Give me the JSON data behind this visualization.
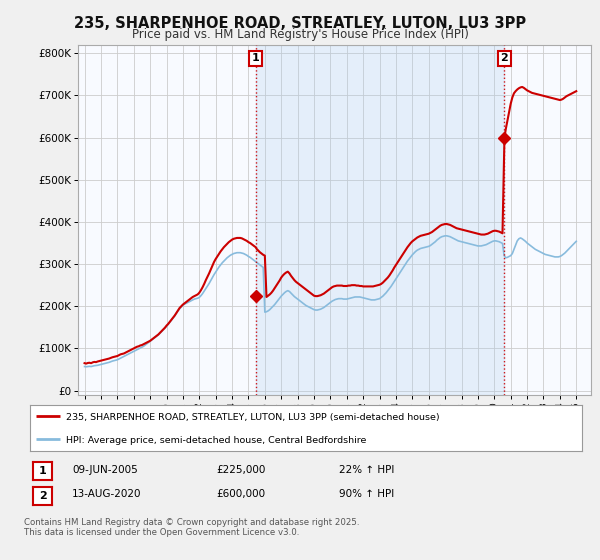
{
  "title": "235, SHARPENHOE ROAD, STREATLEY, LUTON, LU3 3PP",
  "subtitle": "Price paid vs. HM Land Registry's House Price Index (HPI)",
  "background_color": "#f0f0f0",
  "plot_bg_color": "#f8faff",
  "shaded_color": "#ddeeff",
  "grid_color": "#cccccc",
  "red_color": "#cc0000",
  "blue_color": "#88bbdd",
  "annotation1": {
    "label": "1",
    "date": "09-JUN-2005",
    "price": "£225,000",
    "hpi": "22% ↑ HPI",
    "x_year": 2005.44
  },
  "annotation2": {
    "label": "2",
    "date": "13-AUG-2020",
    "price": "£600,000",
    "hpi": "90% ↑ HPI",
    "x_year": 2020.62
  },
  "legend_line1": "235, SHARPENHOE ROAD, STREATLEY, LUTON, LU3 3PP (semi-detached house)",
  "legend_line2": "HPI: Average price, semi-detached house, Central Bedfordshire",
  "footer": "Contains HM Land Registry data © Crown copyright and database right 2025.\nThis data is licensed under the Open Government Licence v3.0.",
  "yticks": [
    0,
    100000,
    200000,
    300000,
    400000,
    500000,
    600000,
    700000,
    800000
  ],
  "ytick_labels": [
    "£0",
    "£100K",
    "£200K",
    "£300K",
    "£400K",
    "£500K",
    "£600K",
    "£700K",
    "£800K"
  ],
  "xmin": 1994.6,
  "xmax": 2025.9,
  "ymin": -10000,
  "ymax": 820000,
  "red_data_x": [
    1995.0,
    1995.1,
    1995.2,
    1995.3,
    1995.4,
    1995.5,
    1995.6,
    1995.7,
    1995.8,
    1995.9,
    1996.0,
    1996.1,
    1996.2,
    1996.3,
    1996.4,
    1996.5,
    1996.6,
    1996.7,
    1996.8,
    1996.9,
    1997.0,
    1997.1,
    1997.2,
    1997.3,
    1997.4,
    1997.5,
    1997.6,
    1997.7,
    1997.8,
    1997.9,
    1998.0,
    1998.1,
    1998.2,
    1998.3,
    1998.4,
    1998.5,
    1998.6,
    1998.7,
    1998.8,
    1998.9,
    1999.0,
    1999.1,
    1999.2,
    1999.3,
    1999.4,
    1999.5,
    1999.6,
    1999.7,
    1999.8,
    1999.9,
    2000.0,
    2000.1,
    2000.2,
    2000.3,
    2000.4,
    2000.5,
    2000.6,
    2000.7,
    2000.8,
    2000.9,
    2001.0,
    2001.1,
    2001.2,
    2001.3,
    2001.4,
    2001.5,
    2001.6,
    2001.7,
    2001.8,
    2001.9,
    2002.0,
    2002.1,
    2002.2,
    2002.3,
    2002.4,
    2002.5,
    2002.6,
    2002.7,
    2002.8,
    2002.9,
    2003.0,
    2003.1,
    2003.2,
    2003.3,
    2003.4,
    2003.5,
    2003.6,
    2003.7,
    2003.8,
    2003.9,
    2004.0,
    2004.1,
    2004.2,
    2004.3,
    2004.4,
    2004.5,
    2004.6,
    2004.7,
    2004.8,
    2004.9,
    2005.0,
    2005.1,
    2005.2,
    2005.3,
    2005.44,
    2005.5,
    2005.6,
    2005.7,
    2005.8,
    2005.9,
    2006.0,
    2006.1,
    2006.2,
    2006.3,
    2006.4,
    2006.5,
    2006.6,
    2006.7,
    2006.8,
    2006.9,
    2007.0,
    2007.1,
    2007.2,
    2007.3,
    2007.4,
    2007.5,
    2007.6,
    2007.7,
    2007.8,
    2007.9,
    2008.0,
    2008.1,
    2008.2,
    2008.3,
    2008.4,
    2008.5,
    2008.6,
    2008.7,
    2008.8,
    2008.9,
    2009.0,
    2009.1,
    2009.2,
    2009.3,
    2009.4,
    2009.5,
    2009.6,
    2009.7,
    2009.8,
    2009.9,
    2010.0,
    2010.1,
    2010.2,
    2010.3,
    2010.4,
    2010.5,
    2010.6,
    2010.7,
    2010.8,
    2010.9,
    2011.0,
    2011.1,
    2011.2,
    2011.3,
    2011.4,
    2011.5,
    2011.6,
    2011.7,
    2011.8,
    2011.9,
    2012.0,
    2012.1,
    2012.2,
    2012.3,
    2012.4,
    2012.5,
    2012.6,
    2012.7,
    2012.8,
    2012.9,
    2013.0,
    2013.1,
    2013.2,
    2013.3,
    2013.4,
    2013.5,
    2013.6,
    2013.7,
    2013.8,
    2013.9,
    2014.0,
    2014.1,
    2014.2,
    2014.3,
    2014.4,
    2014.5,
    2014.6,
    2014.7,
    2014.8,
    2014.9,
    2015.0,
    2015.1,
    2015.2,
    2015.3,
    2015.4,
    2015.5,
    2015.6,
    2015.7,
    2015.8,
    2015.9,
    2016.0,
    2016.1,
    2016.2,
    2016.3,
    2016.4,
    2016.5,
    2016.6,
    2016.7,
    2016.8,
    2016.9,
    2017.0,
    2017.1,
    2017.2,
    2017.3,
    2017.4,
    2017.5,
    2017.6,
    2017.7,
    2017.8,
    2017.9,
    2018.0,
    2018.1,
    2018.2,
    2018.3,
    2018.4,
    2018.5,
    2018.6,
    2018.7,
    2018.8,
    2018.9,
    2019.0,
    2019.1,
    2019.2,
    2019.3,
    2019.4,
    2019.5,
    2019.6,
    2019.7,
    2019.8,
    2019.9,
    2020.0,
    2020.1,
    2020.2,
    2020.3,
    2020.4,
    2020.5,
    2020.62,
    2020.7,
    2020.8,
    2020.9,
    2021.0,
    2021.1,
    2021.2,
    2021.3,
    2021.4,
    2021.5,
    2021.6,
    2021.7,
    2021.8,
    2021.9,
    2022.0,
    2022.1,
    2022.2,
    2022.3,
    2022.4,
    2022.5,
    2022.6,
    2022.7,
    2022.8,
    2022.9,
    2023.0,
    2023.1,
    2023.2,
    2023.3,
    2023.4,
    2023.5,
    2023.6,
    2023.7,
    2023.8,
    2023.9,
    2024.0,
    2024.1,
    2024.2,
    2024.3,
    2024.4,
    2024.5,
    2024.6,
    2024.7,
    2024.8,
    2024.9,
    2025.0
  ],
  "red_data_y": [
    65000,
    64000,
    65500,
    66000,
    65000,
    67000,
    68000,
    67500,
    69000,
    70000,
    71000,
    72000,
    73000,
    74000,
    75000,
    76000,
    77500,
    79000,
    80000,
    81000,
    82000,
    84000,
    86000,
    87000,
    88000,
    90000,
    92000,
    94000,
    96000,
    98000,
    100000,
    102000,
    104000,
    105000,
    107000,
    108000,
    110000,
    112000,
    114000,
    116000,
    118000,
    121000,
    124000,
    127000,
    130000,
    133000,
    137000,
    141000,
    145000,
    149000,
    154000,
    158000,
    163000,
    168000,
    173000,
    178000,
    184000,
    190000,
    196000,
    200000,
    204000,
    207000,
    210000,
    213000,
    216000,
    219000,
    222000,
    224000,
    226000,
    228000,
    232000,
    238000,
    245000,
    253000,
    262000,
    270000,
    278000,
    287000,
    296000,
    305000,
    312000,
    318000,
    324000,
    330000,
    335000,
    340000,
    344000,
    348000,
    352000,
    355000,
    358000,
    360000,
    361000,
    362000,
    362000,
    362000,
    361000,
    359000,
    357000,
    355000,
    352000,
    350000,
    347000,
    344000,
    340000,
    336000,
    332000,
    328000,
    325000,
    322000,
    320000,
    222000,
    225000,
    228000,
    232000,
    237000,
    243000,
    249000,
    255000,
    261000,
    268000,
    273000,
    277000,
    280000,
    282000,
    278000,
    272000,
    267000,
    262000,
    258000,
    255000,
    252000,
    249000,
    246000,
    243000,
    240000,
    237000,
    234000,
    231000,
    228000,
    225000,
    224000,
    224000,
    225000,
    226000,
    228000,
    230000,
    233000,
    236000,
    239000,
    242000,
    245000,
    247000,
    248000,
    249000,
    249000,
    249000,
    249000,
    248000,
    248000,
    248000,
    249000,
    249000,
    250000,
    250000,
    250000,
    249000,
    249000,
    248000,
    248000,
    247000,
    247000,
    247000,
    247000,
    247000,
    247000,
    247000,
    248000,
    249000,
    250000,
    251000,
    253000,
    256000,
    260000,
    264000,
    268000,
    273000,
    279000,
    285000,
    292000,
    298000,
    304000,
    310000,
    316000,
    322000,
    328000,
    334000,
    340000,
    345000,
    350000,
    354000,
    357000,
    360000,
    363000,
    365000,
    367000,
    368000,
    369000,
    370000,
    371000,
    372000,
    374000,
    376000,
    379000,
    382000,
    385000,
    388000,
    391000,
    393000,
    394000,
    395000,
    395000,
    394000,
    393000,
    391000,
    389000,
    387000,
    385000,
    384000,
    383000,
    382000,
    381000,
    380000,
    379000,
    378000,
    377000,
    376000,
    375000,
    374000,
    373000,
    372000,
    371000,
    370000,
    370000,
    370000,
    371000,
    372000,
    374000,
    376000,
    378000,
    379000,
    379000,
    378000,
    377000,
    375000,
    373000,
    600000,
    620000,
    640000,
    660000,
    680000,
    695000,
    705000,
    710000,
    714000,
    717000,
    719000,
    720000,
    718000,
    715000,
    712000,
    710000,
    708000,
    706000,
    705000,
    704000,
    703000,
    702000,
    701000,
    700000,
    699000,
    698000,
    697000,
    696000,
    695000,
    694000,
    693000,
    692000,
    691000,
    690000,
    689000,
    690000,
    692000,
    695000,
    698000,
    700000,
    702000,
    704000,
    706000,
    708000,
    710000
  ],
  "blue_data_x": [
    1995.0,
    1995.1,
    1995.2,
    1995.3,
    1995.4,
    1995.5,
    1995.6,
    1995.7,
    1995.8,
    1995.9,
    1996.0,
    1996.1,
    1996.2,
    1996.3,
    1996.4,
    1996.5,
    1996.6,
    1996.7,
    1996.8,
    1996.9,
    1997.0,
    1997.1,
    1997.2,
    1997.3,
    1997.4,
    1997.5,
    1997.6,
    1997.7,
    1997.8,
    1997.9,
    1998.0,
    1998.1,
    1998.2,
    1998.3,
    1998.4,
    1998.5,
    1998.6,
    1998.7,
    1998.8,
    1998.9,
    1999.0,
    1999.1,
    1999.2,
    1999.3,
    1999.4,
    1999.5,
    1999.6,
    1999.7,
    1999.8,
    1999.9,
    2000.0,
    2000.1,
    2000.2,
    2000.3,
    2000.4,
    2000.5,
    2000.6,
    2000.7,
    2000.8,
    2000.9,
    2001.0,
    2001.1,
    2001.2,
    2001.3,
    2001.4,
    2001.5,
    2001.6,
    2001.7,
    2001.8,
    2001.9,
    2002.0,
    2002.1,
    2002.2,
    2002.3,
    2002.4,
    2002.5,
    2002.6,
    2002.7,
    2002.8,
    2002.9,
    2003.0,
    2003.1,
    2003.2,
    2003.3,
    2003.4,
    2003.5,
    2003.6,
    2003.7,
    2003.8,
    2003.9,
    2004.0,
    2004.1,
    2004.2,
    2004.3,
    2004.4,
    2004.5,
    2004.6,
    2004.7,
    2004.8,
    2004.9,
    2005.0,
    2005.1,
    2005.2,
    2005.3,
    2005.4,
    2005.5,
    2005.6,
    2005.7,
    2005.8,
    2005.9,
    2006.0,
    2006.1,
    2006.2,
    2006.3,
    2006.4,
    2006.5,
    2006.6,
    2006.7,
    2006.8,
    2006.9,
    2007.0,
    2007.1,
    2007.2,
    2007.3,
    2007.4,
    2007.5,
    2007.6,
    2007.7,
    2007.8,
    2007.9,
    2008.0,
    2008.1,
    2008.2,
    2008.3,
    2008.4,
    2008.5,
    2008.6,
    2008.7,
    2008.8,
    2008.9,
    2009.0,
    2009.1,
    2009.2,
    2009.3,
    2009.4,
    2009.5,
    2009.6,
    2009.7,
    2009.8,
    2009.9,
    2010.0,
    2010.1,
    2010.2,
    2010.3,
    2010.4,
    2010.5,
    2010.6,
    2010.7,
    2010.8,
    2010.9,
    2011.0,
    2011.1,
    2011.2,
    2011.3,
    2011.4,
    2011.5,
    2011.6,
    2011.7,
    2011.8,
    2011.9,
    2012.0,
    2012.1,
    2012.2,
    2012.3,
    2012.4,
    2012.5,
    2012.6,
    2012.7,
    2012.8,
    2012.9,
    2013.0,
    2013.1,
    2013.2,
    2013.3,
    2013.4,
    2013.5,
    2013.6,
    2013.7,
    2013.8,
    2013.9,
    2014.0,
    2014.1,
    2014.2,
    2014.3,
    2014.4,
    2014.5,
    2014.6,
    2014.7,
    2014.8,
    2014.9,
    2015.0,
    2015.1,
    2015.2,
    2015.3,
    2015.4,
    2015.5,
    2015.6,
    2015.7,
    2015.8,
    2015.9,
    2016.0,
    2016.1,
    2016.2,
    2016.3,
    2016.4,
    2016.5,
    2016.6,
    2016.7,
    2016.8,
    2016.9,
    2017.0,
    2017.1,
    2017.2,
    2017.3,
    2017.4,
    2017.5,
    2017.6,
    2017.7,
    2017.8,
    2017.9,
    2018.0,
    2018.1,
    2018.2,
    2018.3,
    2018.4,
    2018.5,
    2018.6,
    2018.7,
    2018.8,
    2018.9,
    2019.0,
    2019.1,
    2019.2,
    2019.3,
    2019.4,
    2019.5,
    2019.6,
    2019.7,
    2019.8,
    2019.9,
    2020.0,
    2020.1,
    2020.2,
    2020.3,
    2020.4,
    2020.5,
    2020.6,
    2020.7,
    2020.8,
    2020.9,
    2021.0,
    2021.1,
    2021.2,
    2021.3,
    2021.4,
    2021.5,
    2021.6,
    2021.7,
    2021.8,
    2021.9,
    2022.0,
    2022.1,
    2022.2,
    2022.3,
    2022.4,
    2022.5,
    2022.6,
    2022.7,
    2022.8,
    2022.9,
    2023.0,
    2023.1,
    2023.2,
    2023.3,
    2023.4,
    2023.5,
    2023.6,
    2023.7,
    2023.8,
    2023.9,
    2024.0,
    2024.1,
    2024.2,
    2024.3,
    2024.4,
    2024.5,
    2024.6,
    2024.7,
    2024.8,
    2024.9,
    2025.0
  ],
  "blue_data_y": [
    57000,
    56500,
    57000,
    57500,
    57000,
    58000,
    59000,
    59500,
    60000,
    61000,
    62000,
    63000,
    64000,
    65000,
    66000,
    67000,
    68500,
    70000,
    71000,
    72000,
    73000,
    75000,
    77000,
    79000,
    81000,
    83000,
    85000,
    87000,
    89000,
    91000,
    93000,
    95000,
    97000,
    99000,
    101000,
    103000,
    105000,
    108000,
    111000,
    114000,
    117000,
    120000,
    123000,
    126000,
    129000,
    132000,
    136000,
    140000,
    144000,
    148000,
    152000,
    157000,
    162000,
    167000,
    172000,
    177000,
    183000,
    189000,
    194000,
    198000,
    202000,
    205000,
    207000,
    209000,
    211000,
    213000,
    215000,
    217000,
    218000,
    219000,
    221000,
    225000,
    230000,
    236000,
    242000,
    248000,
    254000,
    261000,
    268000,
    275000,
    281000,
    287000,
    293000,
    298000,
    303000,
    307000,
    311000,
    315000,
    318000,
    321000,
    323000,
    325000,
    326000,
    327000,
    327000,
    327000,
    326000,
    325000,
    323000,
    321000,
    318000,
    316000,
    313000,
    310000,
    307000,
    304000,
    301000,
    298000,
    295000,
    292000,
    186000,
    187000,
    189000,
    192000,
    196000,
    200000,
    204000,
    209000,
    214000,
    219000,
    224000,
    228000,
    232000,
    235000,
    237000,
    235000,
    231000,
    227000,
    223000,
    220000,
    217000,
    214000,
    211000,
    208000,
    205000,
    202000,
    200000,
    198000,
    196000,
    194000,
    192000,
    191000,
    191000,
    192000,
    193000,
    195000,
    197000,
    200000,
    203000,
    206000,
    209000,
    212000,
    214000,
    216000,
    217000,
    218000,
    218000,
    218000,
    217000,
    217000,
    217000,
    218000,
    219000,
    220000,
    221000,
    222000,
    222000,
    222000,
    222000,
    221000,
    220000,
    219000,
    218000,
    217000,
    216000,
    215000,
    215000,
    215000,
    216000,
    217000,
    218000,
    221000,
    224000,
    228000,
    232000,
    237000,
    242000,
    247000,
    253000,
    259000,
    265000,
    271000,
    277000,
    283000,
    289000,
    295000,
    301000,
    307000,
    312000,
    317000,
    322000,
    326000,
    330000,
    333000,
    335000,
    337000,
    338000,
    339000,
    340000,
    341000,
    342000,
    344000,
    347000,
    350000,
    353000,
    357000,
    360000,
    363000,
    365000,
    366000,
    367000,
    367000,
    366000,
    365000,
    363000,
    361000,
    359000,
    357000,
    355000,
    354000,
    353000,
    352000,
    351000,
    350000,
    349000,
    348000,
    347000,
    346000,
    345000,
    344000,
    343000,
    343000,
    343000,
    344000,
    345000,
    346000,
    348000,
    350000,
    352000,
    354000,
    355000,
    355000,
    354000,
    353000,
    351000,
    349000,
    320000,
    315000,
    316000,
    318000,
    320000,
    325000,
    335000,
    345000,
    355000,
    360000,
    362000,
    360000,
    357000,
    354000,
    350000,
    347000,
    344000,
    341000,
    338000,
    335000,
    333000,
    331000,
    329000,
    327000,
    325000,
    323000,
    322000,
    321000,
    320000,
    319000,
    318000,
    317000,
    317000,
    317000,
    318000,
    320000,
    323000,
    326000,
    330000,
    334000,
    338000,
    342000,
    346000,
    350000,
    354000
  ]
}
